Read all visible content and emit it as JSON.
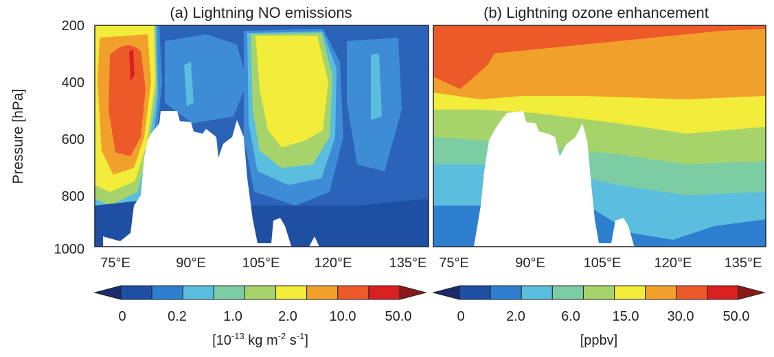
{
  "chart_data": [
    {
      "type": "heatmap",
      "title": "(a) Lightning NO emissions",
      "ylabel": "Pressure [hPa]",
      "xlabel": "",
      "x_ticks": [
        "75°E",
        "90°E",
        "105°E",
        "120°E",
        "135°E"
      ],
      "x_tick_values": [
        75,
        90,
        105,
        120,
        135
      ],
      "xlim": [
        70,
        137
      ],
      "y_ticks": [
        "200",
        "400",
        "600",
        "800",
        "1000"
      ],
      "y_tick_values": [
        200,
        400,
        600,
        800,
        1000
      ],
      "ylim": [
        1000,
        200
      ],
      "colorbar": {
        "label": "[10",
        "label_exp": "-13",
        "label_rest": " kg m",
        "label_exp2": "-2",
        "label_rest2": " s",
        "label_exp3": "-1",
        "label_end": "]",
        "tick_labels": [
          "0",
          "0.2",
          "1.0",
          "2.0",
          "10.0",
          "50.0"
        ],
        "colors": [
          "#1a2a6c",
          "#1f4fa3",
          "#2f7fd0",
          "#5bbede",
          "#7ccda4",
          "#a7d46a",
          "#f2ec3a",
          "#f2a02c",
          "#ec5a2a",
          "#d92020",
          "#8a1a1a"
        ],
        "extend": "both"
      },
      "levels_shown": [
        {
          "lon_range": [
            70,
            80
          ],
          "pressure_range": [
            300,
            650
          ],
          "category": "10.0–50.0",
          "color": "#ec5a2a"
        },
        {
          "lon_range": [
            101,
            115
          ],
          "pressure_range": [
            250,
            650
          ],
          "category": "2.0–10.0",
          "color": "#f2ec3a"
        },
        {
          "lon_range": [
            118,
            134
          ],
          "pressure_range": [
            220,
            900
          ],
          "category": "0–0.2",
          "color": "#1f4fa3"
        }
      ]
    },
    {
      "type": "heatmap",
      "title": "(b) Lightning ozone enhancement",
      "xlabel": "",
      "x_ticks": [
        "75°E",
        "90°E",
        "105°E",
        "120°E",
        "135°E"
      ],
      "x_tick_values": [
        75,
        90,
        105,
        120,
        135
      ],
      "xlim": [
        70,
        137
      ],
      "ylim": [
        1000,
        200
      ],
      "colorbar": {
        "label": "[ppbv]",
        "tick_labels": [
          "0",
          "2.0",
          "6.0",
          "15.0",
          "30.0",
          "50.0"
        ],
        "colors": [
          "#1a2a6c",
          "#1f4fa3",
          "#2f7fd0",
          "#5bbede",
          "#7ccda4",
          "#a7d46a",
          "#f2ec3a",
          "#f2a02c",
          "#ec5a2a",
          "#d92020",
          "#8a1a1a"
        ],
        "extend": "both"
      },
      "levels_shown": [
        {
          "pressure_range": [
            200,
            400
          ],
          "category": "30.0–50.0",
          "color": "#ec5a2a"
        },
        {
          "pressure_range": [
            400,
            580
          ],
          "category": "15.0–30.0",
          "color": "#f2a02c"
        },
        {
          "pressure_range": [
            580,
            800
          ],
          "category": "6.0–15.0",
          "color": "#a7d46a"
        },
        {
          "pressure_range": [
            800,
            1000
          ],
          "category": "2.0–6.0",
          "color": "#5bbede"
        }
      ]
    }
  ]
}
